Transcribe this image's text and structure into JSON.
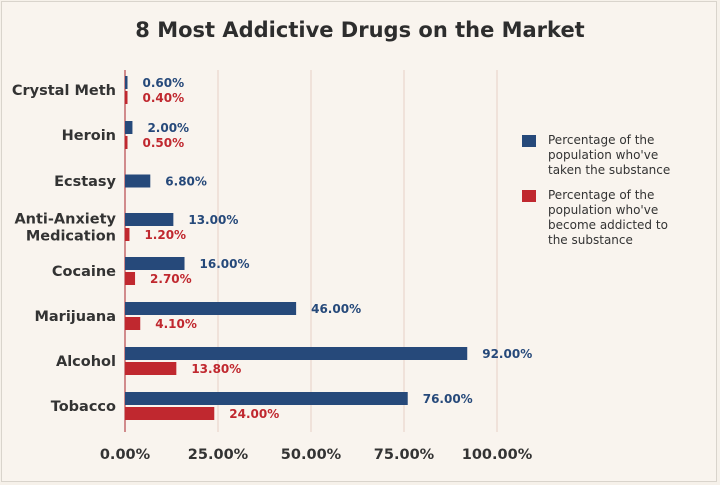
{
  "chart_data": {
    "type": "bar",
    "orientation": "horizontal",
    "title": "8 Most Addictive Drugs on the Market",
    "categories": [
      "Crystal Meth",
      "Heroin",
      "Ecstasy",
      "Anti-Anxiety Medication",
      "Cocaine",
      "Marijuana",
      "Alcohol",
      "Tobacco"
    ],
    "category_label_lines": [
      [
        "Crystal Meth"
      ],
      [
        "Heroin"
      ],
      [
        "Ecstasy"
      ],
      [
        "Anti-Anxiety",
        "Medication"
      ],
      [
        "Cocaine"
      ],
      [
        "Marijuana"
      ],
      [
        "Alcohol"
      ],
      [
        "Tobacco"
      ]
    ],
    "series": [
      {
        "name": "Percentage of the population who've taken the substance",
        "color": "#26497a",
        "values": [
          0.6,
          2.0,
          6.8,
          13.0,
          16.0,
          46.0,
          92.0,
          76.0
        ],
        "labels": [
          "0.60%",
          "2.00%",
          "6.80%",
          "13.00%",
          "16.00%",
          "46.00%",
          "92.00%",
          "76.00%"
        ]
      },
      {
        "name": "Percentage of the population who've become addicted to the substance",
        "color": "#c0282f",
        "values": [
          0.4,
          0.5,
          null,
          1.2,
          2.7,
          4.1,
          13.8,
          24.0
        ],
        "labels": [
          "0.40%",
          "0.50%",
          "",
          "1.20%",
          "2.70%",
          "4.10%",
          "13.80%",
          "24.00%"
        ]
      }
    ],
    "xlim": [
      0,
      100
    ],
    "xticks": [
      0,
      25,
      50,
      75,
      100
    ],
    "xtick_labels": [
      "0.00%",
      "25.00%",
      "50.00%",
      "75.00%",
      "100.00%"
    ],
    "grid": true,
    "legend_position": "right",
    "legend": {
      "taken": [
        "Percentage of the",
        "population who've",
        "taken the substance"
      ],
      "addicted": [
        "Percentage of the",
        "population who've",
        "become addicted to",
        "the substance"
      ]
    }
  }
}
